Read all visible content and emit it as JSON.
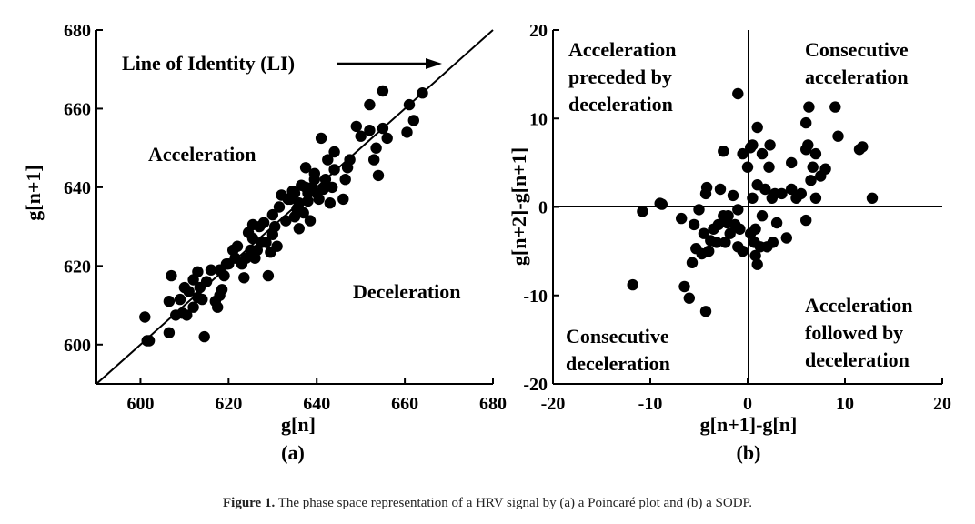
{
  "caption": {
    "label": "Figure 1.",
    "text": "The phase space representation of a HRV signal by (a) a Poincaré plot and (b) a SODP."
  },
  "chart_data": [
    {
      "type": "scatter",
      "panel_label": "(a)",
      "xlabel": "g[n]",
      "ylabel": "g[n+1]",
      "xlim": [
        590,
        680
      ],
      "ylim": [
        590,
        680
      ],
      "xticks": [
        600,
        620,
        640,
        660,
        680
      ],
      "yticks": [
        600,
        620,
        640,
        660,
        680
      ],
      "identity_line": true,
      "annotations": [
        "Line of Identity (LI)",
        "Acceleration",
        "Deceleration"
      ],
      "points": [
        [
          601,
          607
        ],
        [
          601.5,
          601
        ],
        [
          602,
          601
        ],
        [
          606.5,
          603
        ],
        [
          606.5,
          611
        ],
        [
          607,
          617.5
        ],
        [
          608,
          607.5
        ],
        [
          609,
          611.5
        ],
        [
          609.5,
          608
        ],
        [
          610,
          614.5
        ],
        [
          610.5,
          607.5
        ],
        [
          611,
          613.5
        ],
        [
          612,
          609.5
        ],
        [
          612,
          616.5
        ],
        [
          613,
          612
        ],
        [
          613,
          618.5
        ],
        [
          613.5,
          614.5
        ],
        [
          614,
          611.5
        ],
        [
          614.5,
          602
        ],
        [
          615,
          616
        ],
        [
          616,
          619
        ],
        [
          617,
          611
        ],
        [
          617.5,
          609.5
        ],
        [
          618,
          612.5
        ],
        [
          618,
          619
        ],
        [
          618.5,
          614
        ],
        [
          619,
          617.5
        ],
        [
          619.5,
          620.5
        ],
        [
          620,
          620.5
        ],
        [
          621,
          624
        ],
        [
          621.5,
          622
        ],
        [
          622,
          625
        ],
        [
          623,
          620.5
        ],
        [
          623.5,
          617
        ],
        [
          624,
          622
        ],
        [
          624.5,
          628.5
        ],
        [
          625,
          624
        ],
        [
          625.5,
          627
        ],
        [
          625.5,
          630.5
        ],
        [
          626,
          622
        ],
        [
          626.5,
          624
        ],
        [
          627,
          630
        ],
        [
          627.5,
          626
        ],
        [
          628,
          631
        ],
        [
          628.5,
          626
        ],
        [
          629,
          617.5
        ],
        [
          629.5,
          623.5
        ],
        [
          630,
          628
        ],
        [
          630,
          633
        ],
        [
          630.5,
          630
        ],
        [
          631,
          625
        ],
        [
          631.5,
          635
        ],
        [
          632,
          638
        ],
        [
          633,
          631.5
        ],
        [
          633.5,
          637
        ],
        [
          634,
          637
        ],
        [
          634.5,
          639
        ],
        [
          635,
          632.5
        ],
        [
          635,
          638.5
        ],
        [
          635.5,
          634.5
        ],
        [
          636,
          629.5
        ],
        [
          636,
          636
        ],
        [
          636.5,
          640.5
        ],
        [
          637,
          633.5
        ],
        [
          637.5,
          640
        ],
        [
          637.5,
          645
        ],
        [
          638,
          636.5
        ],
        [
          638,
          638.5
        ],
        [
          638.5,
          631.5
        ],
        [
          639,
          640
        ],
        [
          639.5,
          642
        ],
        [
          639.5,
          643.5
        ],
        [
          640,
          638.5
        ],
        [
          640.5,
          637
        ],
        [
          641,
          652.5
        ],
        [
          641.5,
          639.5
        ],
        [
          642,
          642
        ],
        [
          642.5,
          647
        ],
        [
          643,
          636
        ],
        [
          643.5,
          640
        ],
        [
          644,
          644.5
        ],
        [
          644,
          649
        ],
        [
          646,
          637
        ],
        [
          646.5,
          642
        ],
        [
          647,
          645
        ],
        [
          647.5,
          647
        ],
        [
          649,
          655.5
        ],
        [
          650,
          653
        ],
        [
          652,
          654.5
        ],
        [
          652,
          661
        ],
        [
          653,
          647
        ],
        [
          653.5,
          650
        ],
        [
          654,
          643
        ],
        [
          655,
          664.5
        ],
        [
          655,
          655
        ],
        [
          656,
          652.5
        ],
        [
          660.5,
          654
        ],
        [
          661,
          661
        ],
        [
          662,
          657
        ],
        [
          664,
          664
        ]
      ]
    },
    {
      "type": "scatter",
      "panel_label": "(b)",
      "xlabel": "g[n+1]-g[n]",
      "ylabel": "g[n+2]-g[n+1]",
      "xlim": [
        -20,
        20
      ],
      "ylim": [
        -20,
        20
      ],
      "xticks": [
        -20,
        -10,
        0,
        10,
        20
      ],
      "yticks": [
        -20,
        -10,
        0,
        10,
        20
      ],
      "quadrant_labels": {
        "top_left": [
          "Acceleration",
          "preceded by",
          "deceleration"
        ],
        "top_right": [
          "Consecutive",
          "acceleration"
        ],
        "bottom_left": [
          "Consecutive",
          "deceleration"
        ],
        "bottom_right": [
          "Acceleration",
          "followed by",
          "deceleration"
        ]
      },
      "points": [
        [
          -11.8,
          -8.8
        ],
        [
          -10.8,
          -0.5
        ],
        [
          -9,
          0.4
        ],
        [
          -8.8,
          0.3
        ],
        [
          -6.8,
          -1.3
        ],
        [
          -6.5,
          -9
        ],
        [
          -6,
          -10.3
        ],
        [
          -5.7,
          -6.3
        ],
        [
          -5.5,
          -2
        ],
        [
          -5.3,
          -4.7
        ],
        [
          -5,
          -0.3
        ],
        [
          -4.7,
          -5.3
        ],
        [
          -4.5,
          -3
        ],
        [
          -4.3,
          -11.8
        ],
        [
          -4.3,
          1.5
        ],
        [
          -4.2,
          2.2
        ],
        [
          -4,
          -5
        ],
        [
          -3.8,
          -3.8
        ],
        [
          -3.5,
          -2.5
        ],
        [
          -3.2,
          -4
        ],
        [
          -2.8,
          2
        ],
        [
          -2.5,
          -1
        ],
        [
          -2.5,
          6.3
        ],
        [
          -2.3,
          -4
        ],
        [
          -2.1,
          -1.8
        ],
        [
          -1.8,
          -3
        ],
        [
          -1.5,
          1.3
        ],
        [
          -1.3,
          -2
        ],
        [
          -1,
          -0.3
        ],
        [
          -1,
          -4.5
        ],
        [
          -1,
          12.8
        ],
        [
          -0.8,
          -2.5
        ],
        [
          -0.5,
          -5
        ],
        [
          -0.5,
          6
        ],
        [
          0,
          4.5
        ],
        [
          0.3,
          -3
        ],
        [
          0.3,
          6.7
        ],
        [
          0.5,
          1
        ],
        [
          0.5,
          7
        ],
        [
          0.7,
          -4
        ],
        [
          0.8,
          -5.5
        ],
        [
          0.8,
          -2.5
        ],
        [
          1,
          -6.5
        ],
        [
          1,
          2.5
        ],
        [
          1,
          9
        ],
        [
          1.3,
          -4.5
        ],
        [
          1.5,
          -1
        ],
        [
          1.5,
          6
        ],
        [
          1.8,
          2
        ],
        [
          2,
          -4.5
        ],
        [
          2.2,
          4.5
        ],
        [
          2.3,
          7
        ],
        [
          2.5,
          1
        ],
        [
          2.6,
          -4
        ],
        [
          3,
          -1.8
        ],
        [
          3.5,
          1.5
        ],
        [
          4,
          -3.5
        ],
        [
          4.5,
          2
        ],
        [
          4.5,
          5
        ],
        [
          5,
          1
        ],
        [
          5.5,
          1.5
        ],
        [
          6,
          -1.5
        ],
        [
          6,
          6.5
        ],
        [
          6.2,
          7
        ],
        [
          6.3,
          11.3
        ],
        [
          6.5,
          3
        ],
        [
          6.7,
          4.5
        ],
        [
          7,
          1
        ],
        [
          7,
          6
        ],
        [
          7.5,
          3.5
        ],
        [
          8,
          4.3
        ],
        [
          9,
          11.3
        ],
        [
          9.3,
          8
        ],
        [
          11.5,
          6.5
        ],
        [
          11.8,
          6.8
        ],
        [
          12.8,
          1
        ],
        [
          6,
          9.5
        ],
        [
          -3,
          -2
        ],
        [
          -2,
          -1
        ],
        [
          2.8,
          1.5
        ]
      ]
    }
  ]
}
